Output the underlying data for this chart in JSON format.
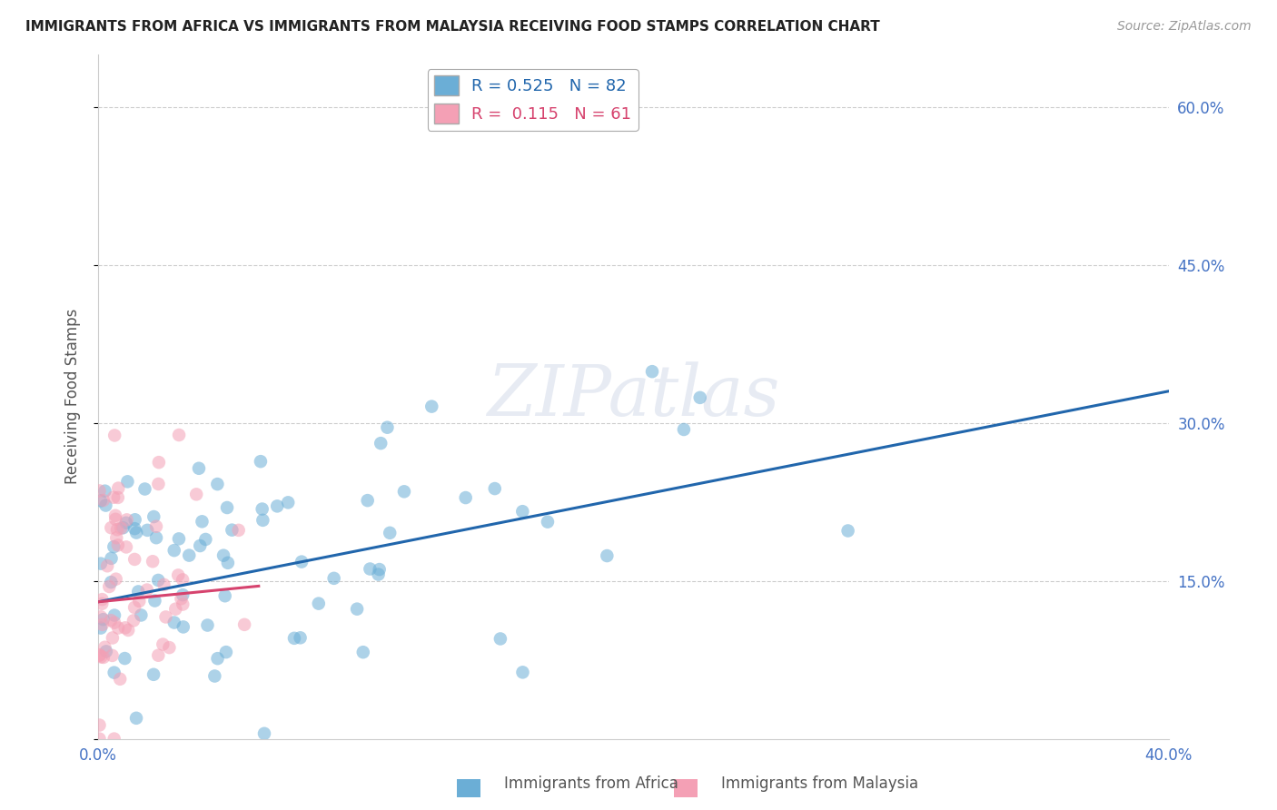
{
  "title": "IMMIGRANTS FROM AFRICA VS IMMIGRANTS FROM MALAYSIA RECEIVING FOOD STAMPS CORRELATION CHART",
  "source": "Source: ZipAtlas.com",
  "ylabel": "Receiving Food Stamps",
  "xlim": [
    0.0,
    0.4
  ],
  "ylim": [
    0.0,
    0.65
  ],
  "yticks": [
    0.0,
    0.15,
    0.3,
    0.45,
    0.6
  ],
  "ytick_labels": [
    "",
    "15.0%",
    "30.0%",
    "45.0%",
    "60.0%"
  ],
  "xticks": [
    0.0,
    0.1,
    0.2,
    0.3,
    0.4
  ],
  "xtick_labels": [
    "0.0%",
    "",
    "",
    "",
    "40.0%"
  ],
  "africa_R": 0.525,
  "africa_N": 82,
  "malaysia_R": 0.115,
  "malaysia_N": 61,
  "africa_color": "#6baed6",
  "malaysia_color": "#f4a0b5",
  "africa_line_color": "#2166ac",
  "malaysia_line_color": "#d6436e",
  "grid_color": "#cccccc",
  "watermark": "ZIPatlas",
  "title_color": "#222222",
  "axis_label_color": "#555555",
  "tick_label_color": "#4472c4",
  "right_tick_color": "#4472c4",
  "africa_line_x": [
    0.0,
    0.4
  ],
  "africa_line_y": [
    0.13,
    0.33
  ],
  "malaysia_line_x": [
    0.0,
    0.06
  ],
  "malaysia_line_y": [
    0.13,
    0.145
  ]
}
